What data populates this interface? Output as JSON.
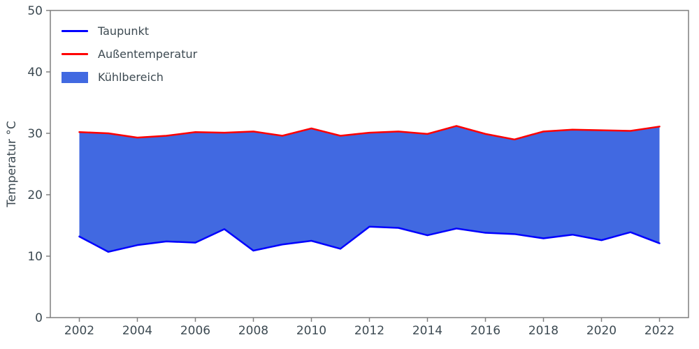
{
  "figure": {
    "ylabel": "Temperatur °C",
    "text_color": "#3d4a52",
    "spine_color": "#7f7f7f",
    "background": "#ffffff"
  },
  "legend": {
    "items": [
      {
        "label": "Taupunkt",
        "swatch": "line",
        "color": "#0000ff"
      },
      {
        "label": "Außentemperatur",
        "swatch": "line",
        "color": "#ff0000"
      },
      {
        "label": "Kühlbereich",
        "swatch": "patch",
        "color": "#4169e1"
      }
    ]
  },
  "chart_data": {
    "type": "area",
    "title": "",
    "xlabel": "",
    "ylabel": "Temperatur °C",
    "x": [
      2002,
      2003,
      2004,
      2005,
      2006,
      2007,
      2008,
      2009,
      2010,
      2011,
      2012,
      2013,
      2014,
      2015,
      2016,
      2017,
      2018,
      2019,
      2020,
      2021,
      2022
    ],
    "series": [
      {
        "name": "Taupunkt",
        "color": "#0000ff",
        "line_width": 2.5,
        "values": [
          13.2,
          10.7,
          11.8,
          12.4,
          12.2,
          14.4,
          10.9,
          11.9,
          12.5,
          11.2,
          14.8,
          14.6,
          13.4,
          14.5,
          13.8,
          13.6,
          12.9,
          13.5,
          12.6,
          13.9,
          12.1
        ]
      },
      {
        "name": "Außentemperatur",
        "color": "#ff0000",
        "line_width": 2.5,
        "values": [
          30.2,
          30.0,
          29.3,
          29.6,
          30.2,
          30.1,
          30.3,
          29.6,
          30.8,
          29.6,
          30.1,
          30.3,
          29.9,
          31.2,
          29.9,
          29.0,
          30.3,
          30.6,
          30.5,
          30.4,
          31.1
        ]
      }
    ],
    "fill_between": {
      "name": "Kühlbereich",
      "lower_series": "Taupunkt",
      "upper_series": "Außentemperatur",
      "color": "#4169e1"
    },
    "xlim": [
      2001,
      2023
    ],
    "ylim": [
      0,
      50
    ],
    "xticks": [
      2002,
      2004,
      2006,
      2008,
      2010,
      2012,
      2014,
      2016,
      2018,
      2020,
      2022
    ],
    "yticks": [
      0,
      10,
      20,
      30,
      40,
      50
    ],
    "grid": false,
    "legend_position": "upper-left"
  }
}
